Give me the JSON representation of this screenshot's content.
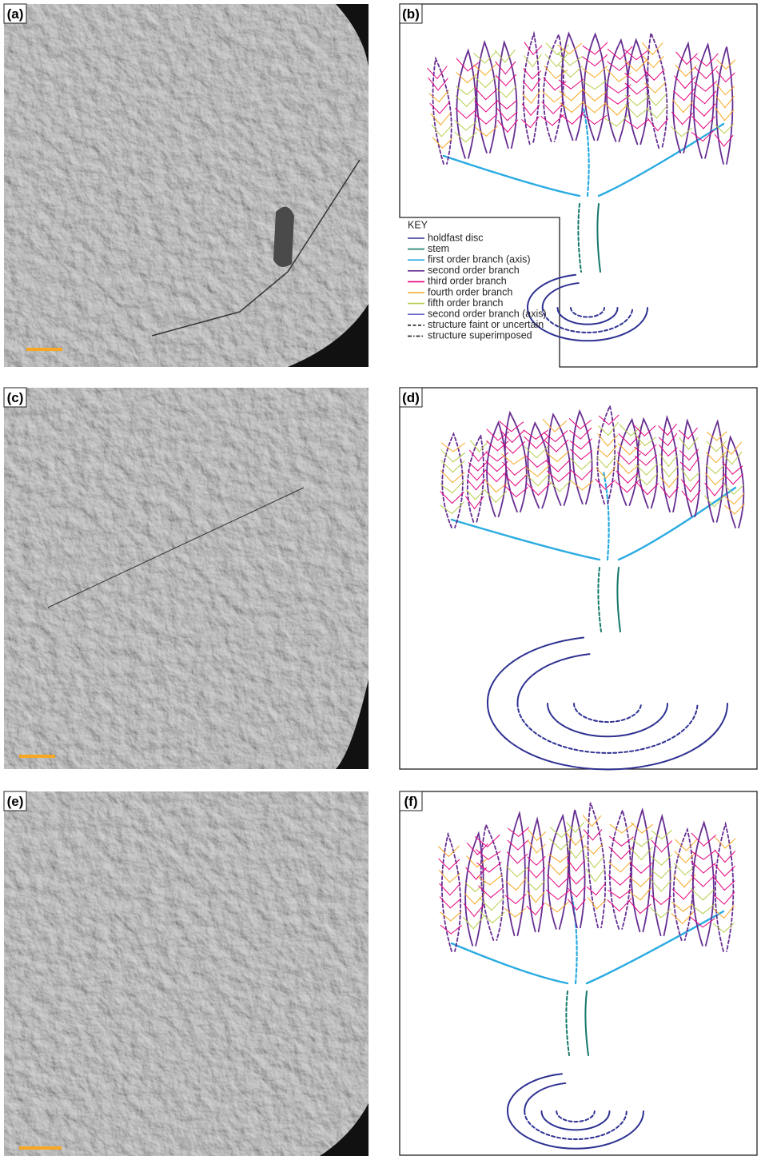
{
  "panels": [
    {
      "label": "(a)"
    },
    {
      "label": "(b)"
    },
    {
      "label": "(c)"
    },
    {
      "label": "(d)"
    },
    {
      "label": "(e)"
    },
    {
      "label": "(f)"
    }
  ],
  "key": {
    "title": "KEY",
    "items": [
      {
        "label": "holdfast disc",
        "color": "#2e3192",
        "style": "solid"
      },
      {
        "label": "stem",
        "color": "#14786a",
        "style": "solid"
      },
      {
        "label": "first order branch (axis)",
        "color": "#29abe2",
        "style": "solid"
      },
      {
        "label": "second order branch",
        "color": "#662d91",
        "style": "solid"
      },
      {
        "label": "third order branch",
        "color": "#e6007e",
        "style": "solid"
      },
      {
        "label": "fourth order branch",
        "color": "#f7a823",
        "style": "solid"
      },
      {
        "label": "fifth order branch",
        "color": "#b5cf4b",
        "style": "solid"
      },
      {
        "label": "second order branch (axis)",
        "color": "#6666cc",
        "style": "solid"
      },
      {
        "label": "structure faint or uncertain",
        "color": "#231f20",
        "style": "dashed"
      },
      {
        "label": "structure superimposed",
        "color": "#231f20",
        "style": "dashdot"
      }
    ]
  }
}
